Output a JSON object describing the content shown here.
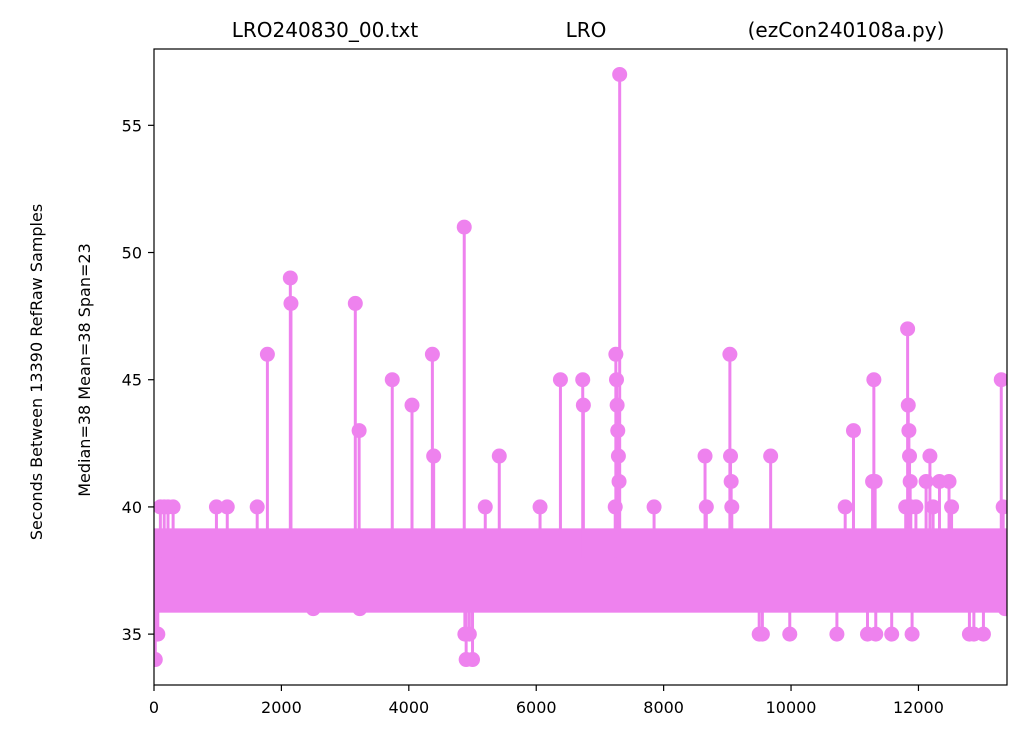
{
  "chart_data": {
    "type": "scatter",
    "style": "stem",
    "title_parts": [
      "LRO240830_00.txt",
      "LRO",
      "(ezCon240108a.py)"
    ],
    "ylabel_lines": [
      "Seconds Between 13390 RefRaw Samples",
      "Median=38  Mean=38  Span=23"
    ],
    "xlabel": "",
    "xlim": [
      0,
      13390
    ],
    "ylim": [
      33,
      58
    ],
    "xticks": [
      0,
      2000,
      4000,
      6000,
      8000,
      10000,
      12000
    ],
    "yticks": [
      35,
      40,
      45,
      50,
      55
    ],
    "baseline": 38,
    "color": "#ee82ee",
    "dense_band": {
      "min": 36,
      "max": 39,
      "x_start": 0,
      "x_end": 13390
    },
    "series": [
      {
        "values_note": "",
        "x": [
          20,
          60,
          100,
          160,
          220,
          300,
          980,
          1150,
          1620,
          1780,
          2140,
          2150,
          2500,
          3160,
          3220,
          3230,
          3740,
          4050,
          4370,
          4390,
          4870,
          4880,
          4900,
          4950,
          5000,
          5200,
          5420,
          6060,
          6380,
          6730,
          6740,
          7240,
          7250,
          7260,
          7270,
          7280,
          7290,
          7300,
          7310,
          7850,
          8650,
          8670,
          9040,
          9050,
          9060,
          9070,
          9500,
          9550,
          9680,
          9980,
          10720,
          10850,
          10980,
          11200,
          11280,
          11300,
          11320,
          11330,
          11580,
          11800,
          11830,
          11840,
          11850,
          11860,
          11870,
          11880,
          11900,
          11960,
          12120,
          12180,
          12230,
          12330,
          12480,
          12520,
          12800,
          12870,
          13020,
          13300,
          13330,
          13360
        ],
        "y": [
          34,
          35,
          40,
          40,
          40,
          40,
          40,
          40,
          40,
          46,
          49,
          48,
          36,
          48,
          43,
          36,
          45,
          44,
          46,
          42,
          51,
          35,
          34,
          35,
          34,
          40,
          42,
          40,
          45,
          45,
          44,
          40,
          46,
          45,
          44,
          43,
          42,
          41,
          57,
          40,
          42,
          40,
          46,
          42,
          41,
          40,
          35,
          35,
          42,
          35,
          35,
          40,
          43,
          35,
          41,
          45,
          41,
          35,
          35,
          40,
          47,
          44,
          43,
          42,
          41,
          40,
          35,
          40,
          41,
          42,
          40,
          41,
          41,
          40,
          35,
          35,
          35,
          45,
          40,
          36
        ]
      }
    ]
  }
}
